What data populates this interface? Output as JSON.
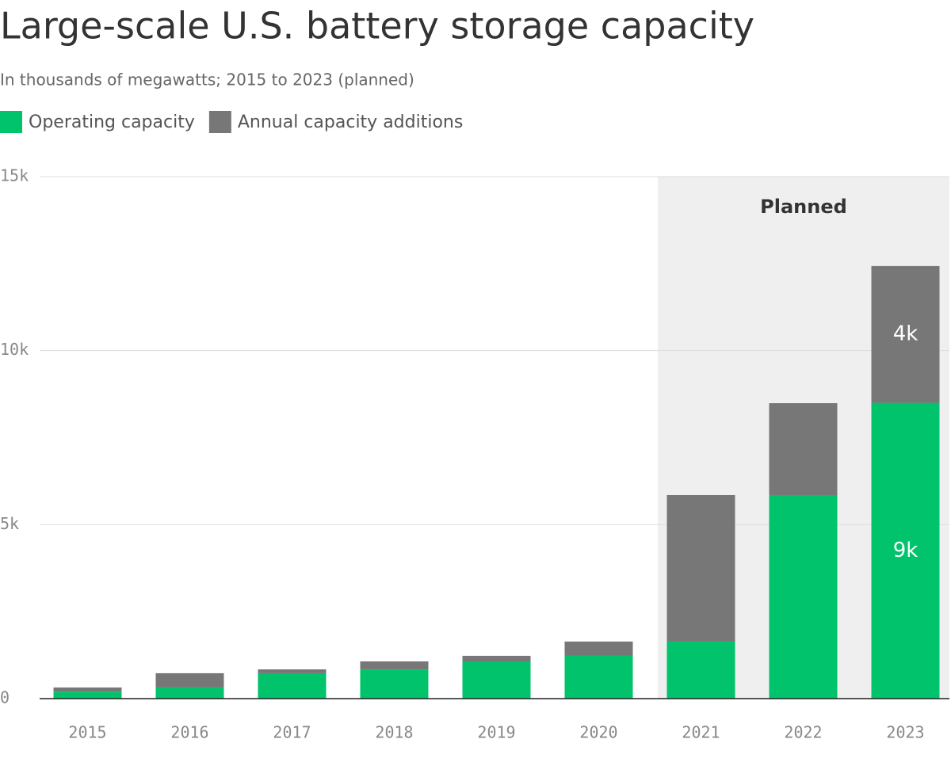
{
  "chart_data": {
    "type": "stacked_bar",
    "title": "Large-scale U.S. battery storage capacity",
    "subtitle": "In thousands of megawatts; 2015 to 2023 (planned)",
    "categories": [
      "2015",
      "2016",
      "2017",
      "2018",
      "2019",
      "2020",
      "2021",
      "2022",
      "2023"
    ],
    "series": [
      {
        "name": "Operating capacity",
        "color": "#00c36b",
        "values": [
          200,
          320,
          730,
          840,
          1070,
          1230,
          1640,
          5850,
          8500
        ],
        "value_labels": [
          null,
          null,
          null,
          null,
          null,
          null,
          null,
          null,
          "9k"
        ]
      },
      {
        "name": "Annual capacity additions",
        "color": "#777777",
        "values": [
          120,
          410,
          110,
          230,
          160,
          410,
          4210,
          2640,
          3930
        ],
        "value_labels": [
          null,
          null,
          null,
          null,
          null,
          null,
          null,
          null,
          "4k"
        ]
      }
    ],
    "shaded_region": {
      "label": "Planned",
      "start": "2021"
    },
    "ylim": [
      0,
      15000
    ],
    "yticks": [
      0,
      {
        "value": 5000,
        "label": "5k"
      },
      {
        "value": 10000,
        "label": "10k"
      },
      {
        "value": 15000,
        "label": "15k"
      }
    ],
    "grid": true
  }
}
